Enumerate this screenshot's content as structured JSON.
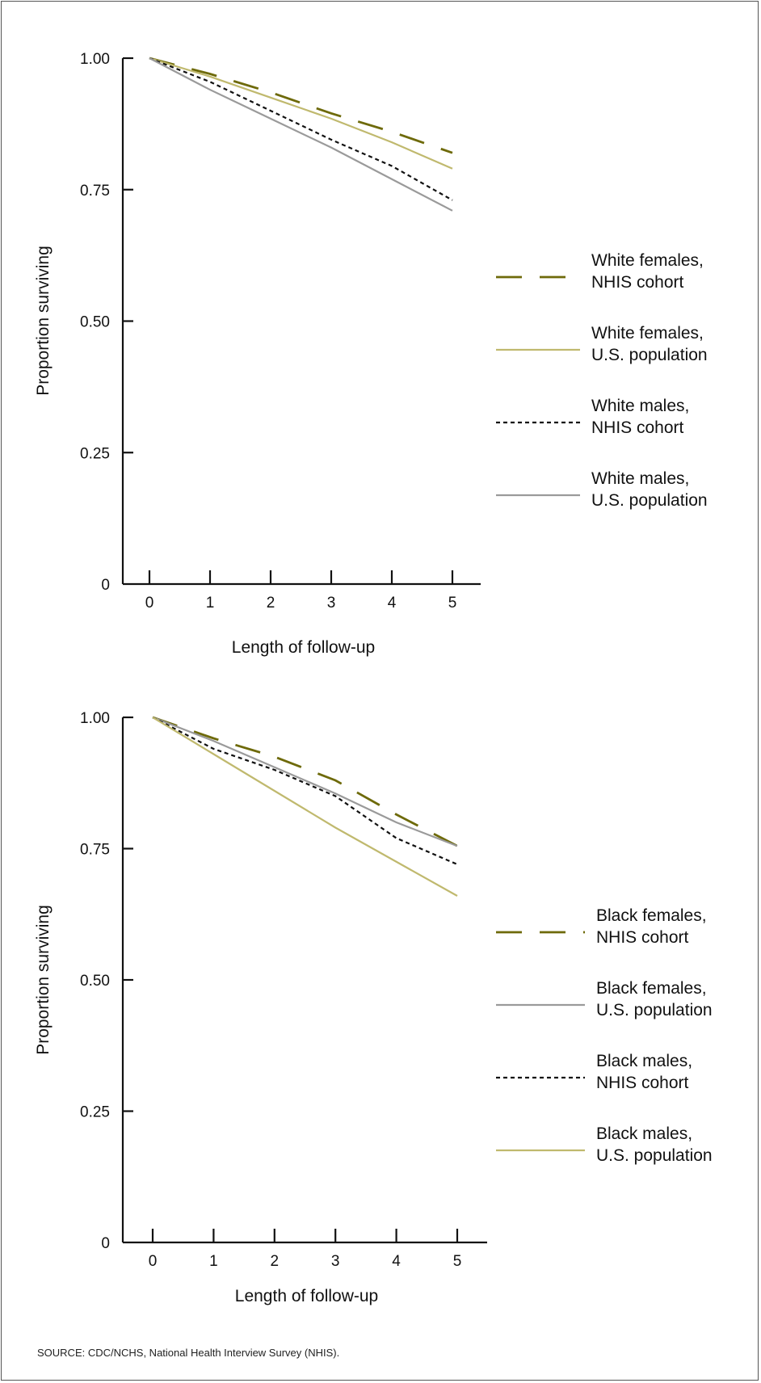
{
  "colors": {
    "olive": "#6e6a0a",
    "khaki": "#c0b96e",
    "gray": "#9a9a9a",
    "black": "#111111"
  },
  "source": "SOURCE: CDC/NCHS, National Health Interview Survey (NHIS).",
  "chart_data": [
    {
      "type": "line",
      "xlabel": "Length of follow-up",
      "ylabel": "Proportion surviving",
      "x": [
        0,
        1,
        2,
        3,
        4,
        5
      ],
      "xticks": [
        "0",
        "1",
        "2",
        "3",
        "4",
        "5"
      ],
      "yticks": [
        "0",
        "0.25",
        "0.50",
        "0.75",
        "1.00"
      ],
      "ytick_values": [
        0,
        0.25,
        0.5,
        0.75,
        1.0
      ],
      "ylim": [
        0,
        1.0
      ],
      "legend": "right",
      "grid": false,
      "series": [
        {
          "name_line1": "White females,",
          "name_line2": "NHIS cohort",
          "style": "longdash",
          "color": "#6e6a0a",
          "values": [
            1.0,
            0.97,
            0.935,
            0.895,
            0.86,
            0.82
          ]
        },
        {
          "name_line1": "White females,",
          "name_line2": "U.S. population",
          "style": "solid",
          "color": "#c0b96e",
          "values": [
            1.0,
            0.965,
            0.925,
            0.885,
            0.84,
            0.79
          ]
        },
        {
          "name_line1": "White males,",
          "name_line2": "NHIS cohort",
          "style": "dotted",
          "color": "#111111",
          "values": [
            1.0,
            0.955,
            0.9,
            0.845,
            0.795,
            0.73
          ]
        },
        {
          "name_line1": "White males,",
          "name_line2": "U.S. population",
          "style": "solid",
          "color": "#9a9a9a",
          "values": [
            1.0,
            0.94,
            0.885,
            0.83,
            0.77,
            0.71
          ]
        }
      ]
    },
    {
      "type": "line",
      "xlabel": "Length of follow-up",
      "ylabel": "Proportion surviving",
      "x": [
        0,
        1,
        2,
        3,
        4,
        5
      ],
      "xticks": [
        "0",
        "1",
        "2",
        "3",
        "4",
        "5"
      ],
      "yticks": [
        "0",
        "0.25",
        "0.50",
        "0.75",
        "1.00"
      ],
      "ytick_values": [
        0,
        0.25,
        0.5,
        0.75,
        1.0
      ],
      "ylim": [
        0,
        1.0
      ],
      "legend": "right",
      "grid": false,
      "series": [
        {
          "name_line1": "Black females,",
          "name_line2": "NHIS cohort",
          "style": "longdash",
          "color": "#6e6a0a",
          "values": [
            1.0,
            0.96,
            0.925,
            0.88,
            0.815,
            0.755
          ]
        },
        {
          "name_line1": "Black females,",
          "name_line2": "U.S. population",
          "style": "solid",
          "color": "#9a9a9a",
          "values": [
            1.0,
            0.955,
            0.905,
            0.855,
            0.8,
            0.755
          ]
        },
        {
          "name_line1": "Black males,",
          "name_line2": "NHIS cohort",
          "style": "dotted",
          "color": "#111111",
          "values": [
            1.0,
            0.94,
            0.9,
            0.85,
            0.77,
            0.72
          ]
        },
        {
          "name_line1": "Black males,",
          "name_line2": "U.S. population",
          "style": "solid",
          "color": "#c0b96e",
          "values": [
            1.0,
            0.93,
            0.86,
            0.79,
            0.725,
            0.66
          ]
        }
      ]
    }
  ]
}
